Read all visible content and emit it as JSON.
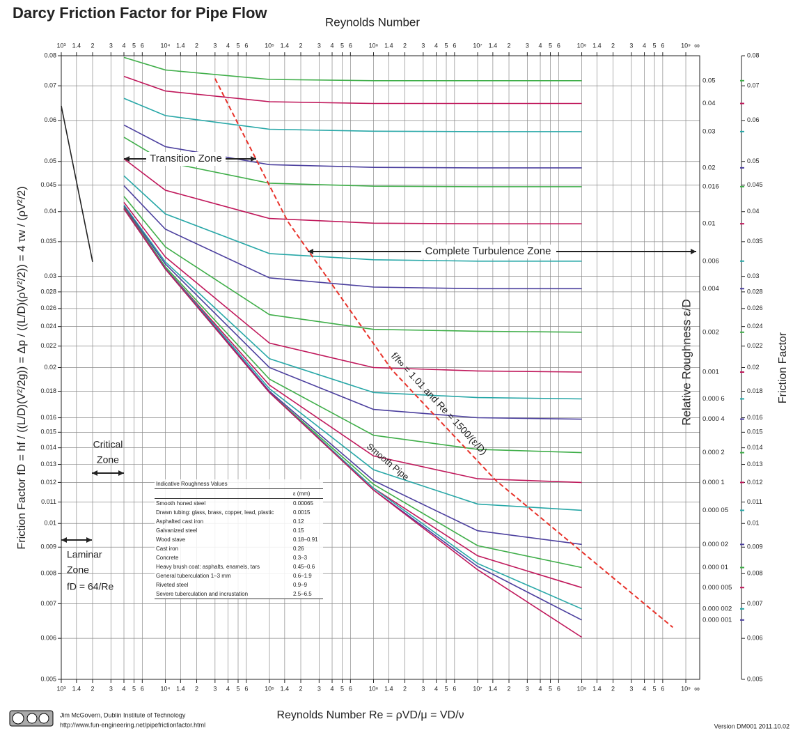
{
  "chart_data": {
    "type": "line",
    "title": "Darcy Friction Factor for Pipe Flow",
    "x_label_top": "Reynolds Number",
    "x_label": "Reynolds Number  Re = ρVD/μ = VD/ν",
    "y_label": "Friction Factor  fD = hf / ((L/D)(V²/2g)) = Δp / ((L/D)(ρV²/2)) = 4 τw / (ρV²/2)",
    "y2_label": "Friction Factor",
    "roughness_label": "Relative Roughness  ε/D",
    "xscale": "log",
    "yscale": "log",
    "grid": true,
    "xlim": [
      1000,
      1360000000
    ],
    "ylim": [
      0.005,
      0.08
    ],
    "x_end_label": "∞",
    "xticks": [
      {
        "value": 1000,
        "label": "10³"
      },
      {
        "value": 1400,
        "label": "1.4"
      },
      {
        "value": 2000,
        "label": "2"
      },
      {
        "value": 3000,
        "label": "3"
      },
      {
        "value": 4000,
        "label": "4"
      },
      {
        "value": 5000,
        "label": "5"
      },
      {
        "value": 6000,
        "label": "6"
      },
      {
        "value": 10000,
        "label": "10⁴"
      },
      {
        "value": 14000,
        "label": "1.4"
      },
      {
        "value": 20000,
        "label": "2"
      },
      {
        "value": 30000,
        "label": "3"
      },
      {
        "value": 40000,
        "label": "4"
      },
      {
        "value": 50000,
        "label": "5"
      },
      {
        "value": 60000,
        "label": "6"
      },
      {
        "value": 100000,
        "label": "10⁵"
      },
      {
        "value": 140000,
        "label": "1.4"
      },
      {
        "value": 200000,
        "label": "2"
      },
      {
        "value": 300000,
        "label": "3"
      },
      {
        "value": 400000,
        "label": "4"
      },
      {
        "value": 500000,
        "label": "5"
      },
      {
        "value": 600000,
        "label": "6"
      },
      {
        "value": 1000000,
        "label": "10⁶"
      },
      {
        "value": 1400000,
        "label": "1.4"
      },
      {
        "value": 2000000,
        "label": "2"
      },
      {
        "value": 3000000,
        "label": "3"
      },
      {
        "value": 4000000,
        "label": "4"
      },
      {
        "value": 5000000,
        "label": "5"
      },
      {
        "value": 6000000,
        "label": "6"
      },
      {
        "value": 10000000,
        "label": "10⁷"
      },
      {
        "value": 14000000,
        "label": "1.4"
      },
      {
        "value": 20000000,
        "label": "2"
      },
      {
        "value": 30000000,
        "label": "3"
      },
      {
        "value": 40000000,
        "label": "4"
      },
      {
        "value": 50000000,
        "label": "5"
      },
      {
        "value": 60000000,
        "label": "6"
      },
      {
        "value": 100000000,
        "label": "10⁸"
      },
      {
        "value": 140000000,
        "label": "1.4"
      },
      {
        "value": 200000000,
        "label": "2"
      },
      {
        "value": 300000000,
        "label": "3"
      },
      {
        "value": 400000000,
        "label": "4"
      },
      {
        "value": 500000000,
        "label": "5"
      },
      {
        "value": 600000000,
        "label": "6"
      },
      {
        "value": 1000000000,
        "label": "10⁹"
      }
    ],
    "yticks": [
      0.005,
      0.006,
      0.007,
      0.008,
      0.009,
      0.01,
      0.011,
      0.012,
      0.013,
      0.014,
      0.015,
      0.016,
      0.018,
      0.02,
      0.022,
      0.024,
      0.026,
      0.028,
      0.03,
      0.035,
      0.04,
      0.045,
      0.05,
      0.06,
      0.07,
      0.08
    ],
    "x": [
      4000,
      10000,
      100000,
      1000000,
      10000000,
      100000000
    ],
    "series": [
      {
        "name": "0.05",
        "color": "#3fae49",
        "values": [
          0.0794,
          0.0751,
          0.072,
          0.0716,
          0.0716,
          0.0716
        ]
      },
      {
        "name": "0.04",
        "color": "#c0185b",
        "values": [
          0.073,
          0.0684,
          0.0652,
          0.0647,
          0.0647,
          0.0647
        ]
      },
      {
        "name": "0.03",
        "color": "#27a7a7",
        "values": [
          0.0662,
          0.0613,
          0.0577,
          0.0572,
          0.0571,
          0.0571
        ]
      },
      {
        "name": "0.02",
        "color": "#4b3f9e",
        "values": [
          0.0588,
          0.0534,
          0.0493,
          0.0487,
          0.0486,
          0.0486
        ]
      },
      {
        "name": "0.016",
        "color": "#3fae49",
        "values": [
          0.0557,
          0.0499,
          0.0454,
          0.0448,
          0.0447,
          0.0447
        ]
      },
      {
        "name": "0.01",
        "color": "#c0185b",
        "values": [
          0.0506,
          0.044,
          0.0388,
          0.038,
          0.0379,
          0.0379
        ]
      },
      {
        "name": "0.006",
        "color": "#27a7a7",
        "values": [
          0.0469,
          0.0396,
          0.0332,
          0.0323,
          0.0321,
          0.0321
        ]
      },
      {
        "name": "0.004",
        "color": "#4b3f9e",
        "values": [
          0.0449,
          0.037,
          0.0298,
          0.0286,
          0.0284,
          0.0284
        ]
      },
      {
        "name": "0.002",
        "color": "#3fae49",
        "values": [
          0.0428,
          0.0342,
          0.0253,
          0.0237,
          0.0235,
          0.0234
        ]
      },
      {
        "name": "0.001",
        "color": "#c0185b",
        "values": [
          0.0417,
          0.0327,
          0.0223,
          0.02,
          0.0197,
          0.0196
        ]
      },
      {
        "name": "0.000 6",
        "color": "#27a7a7",
        "values": [
          0.0412,
          0.032,
          0.0208,
          0.0179,
          0.0175,
          0.0174
        ]
      },
      {
        "name": "0.000 4",
        "color": "#4b3f9e",
        "values": [
          0.041,
          0.0317,
          0.02,
          0.0166,
          0.016,
          0.0159
        ]
      },
      {
        "name": "0.000 2",
        "color": "#3fae49",
        "values": [
          0.0408,
          0.0313,
          0.019,
          0.0148,
          0.0139,
          0.0137
        ]
      },
      {
        "name": "0.000 1",
        "color": "#c0185b",
        "values": [
          0.0407,
          0.0311,
          0.0185,
          0.0135,
          0.0122,
          0.012
        ]
      },
      {
        "name": "0.000 05",
        "color": "#27a7a7",
        "values": [
          0.0406,
          0.0311,
          0.0182,
          0.0127,
          0.0109,
          0.0106
        ]
      },
      {
        "name": "0.000 02",
        "color": "#4b3f9e",
        "values": [
          0.0406,
          0.031,
          0.018,
          0.0121,
          0.00968,
          0.00911
        ]
      },
      {
        "name": "0.000 01",
        "color": "#3fae49",
        "values": [
          0.0406,
          0.031,
          0.0179,
          0.0119,
          0.00906,
          0.00822
        ]
      },
      {
        "name": "0.000 005",
        "color": "#c0185b",
        "values": [
          0.0405,
          0.031,
          0.0179,
          0.0117,
          0.00866,
          0.00752
        ]
      },
      {
        "name": "0.000 002",
        "color": "#27a7a7",
        "values": [
          0.0405,
          0.031,
          0.0179,
          0.0117,
          0.00837,
          0.00684
        ]
      },
      {
        "name": "0.000 001",
        "color": "#4b3f9e",
        "values": [
          0.0405,
          0.031,
          0.0179,
          0.0116,
          0.00826,
          0.00651
        ]
      },
      {
        "name": "Smooth Pipe",
        "color": "#c0185b",
        "values": [
          0.0405,
          0.031,
          0.0179,
          0.0116,
          0.00814,
          0.00603
        ]
      }
    ],
    "laminar": {
      "x": [
        1000,
        2000
      ],
      "values": [
        0.064,
        0.032
      ],
      "color": "#222222"
    },
    "boundary": {
      "x": [
        30000,
        150000,
        1500000,
        15000000,
        750000000
      ],
      "values": [
        0.0723,
        0.0383,
        0.0198,
        0.0121,
        0.0063
      ],
      "color": "#e8322a"
    },
    "annotations": [
      "Transition Zone",
      "Complete Turbulence Zone",
      "Critical",
      "Zone",
      "Laminar",
      "Zone",
      "fD = 64/Re",
      "f/f∞ = 1.01  and  Re = 1500/(ε/D)"
    ],
    "roughness_table": {
      "title": "Indicative Roughness Values",
      "unit_header": "ε (mm)",
      "rows": [
        [
          "Smooth honed steel",
          "0.00065"
        ],
        [
          "Drawn tubing: glass, brass, copper, lead, plastic",
          "0.0015"
        ],
        [
          "Asphalted cast iron",
          "0.12"
        ],
        [
          "Galvanized steel",
          "0.15"
        ],
        [
          "Wood stave",
          "0.18–0.91"
        ],
        [
          "Cast iron",
          "0.26"
        ],
        [
          "Concrete",
          "0.3–3"
        ],
        [
          "Heavy brush coat: asphalts, enamels, tars",
          "0.45–0.6"
        ],
        [
          "General tuberculation 1–3 mm",
          "0.6–1.9"
        ],
        [
          "Riveted steel",
          "0.9–9"
        ],
        [
          "Severe tuberculation and incrustation",
          "2.5–6.5"
        ]
      ]
    },
    "footer": {
      "author": "Jim McGovern, Dublin Institute of Technology",
      "url": "http://www.fun-engineering.net/pipefrictionfactor.html",
      "version": "Version DM001 2011.10.02"
    }
  }
}
